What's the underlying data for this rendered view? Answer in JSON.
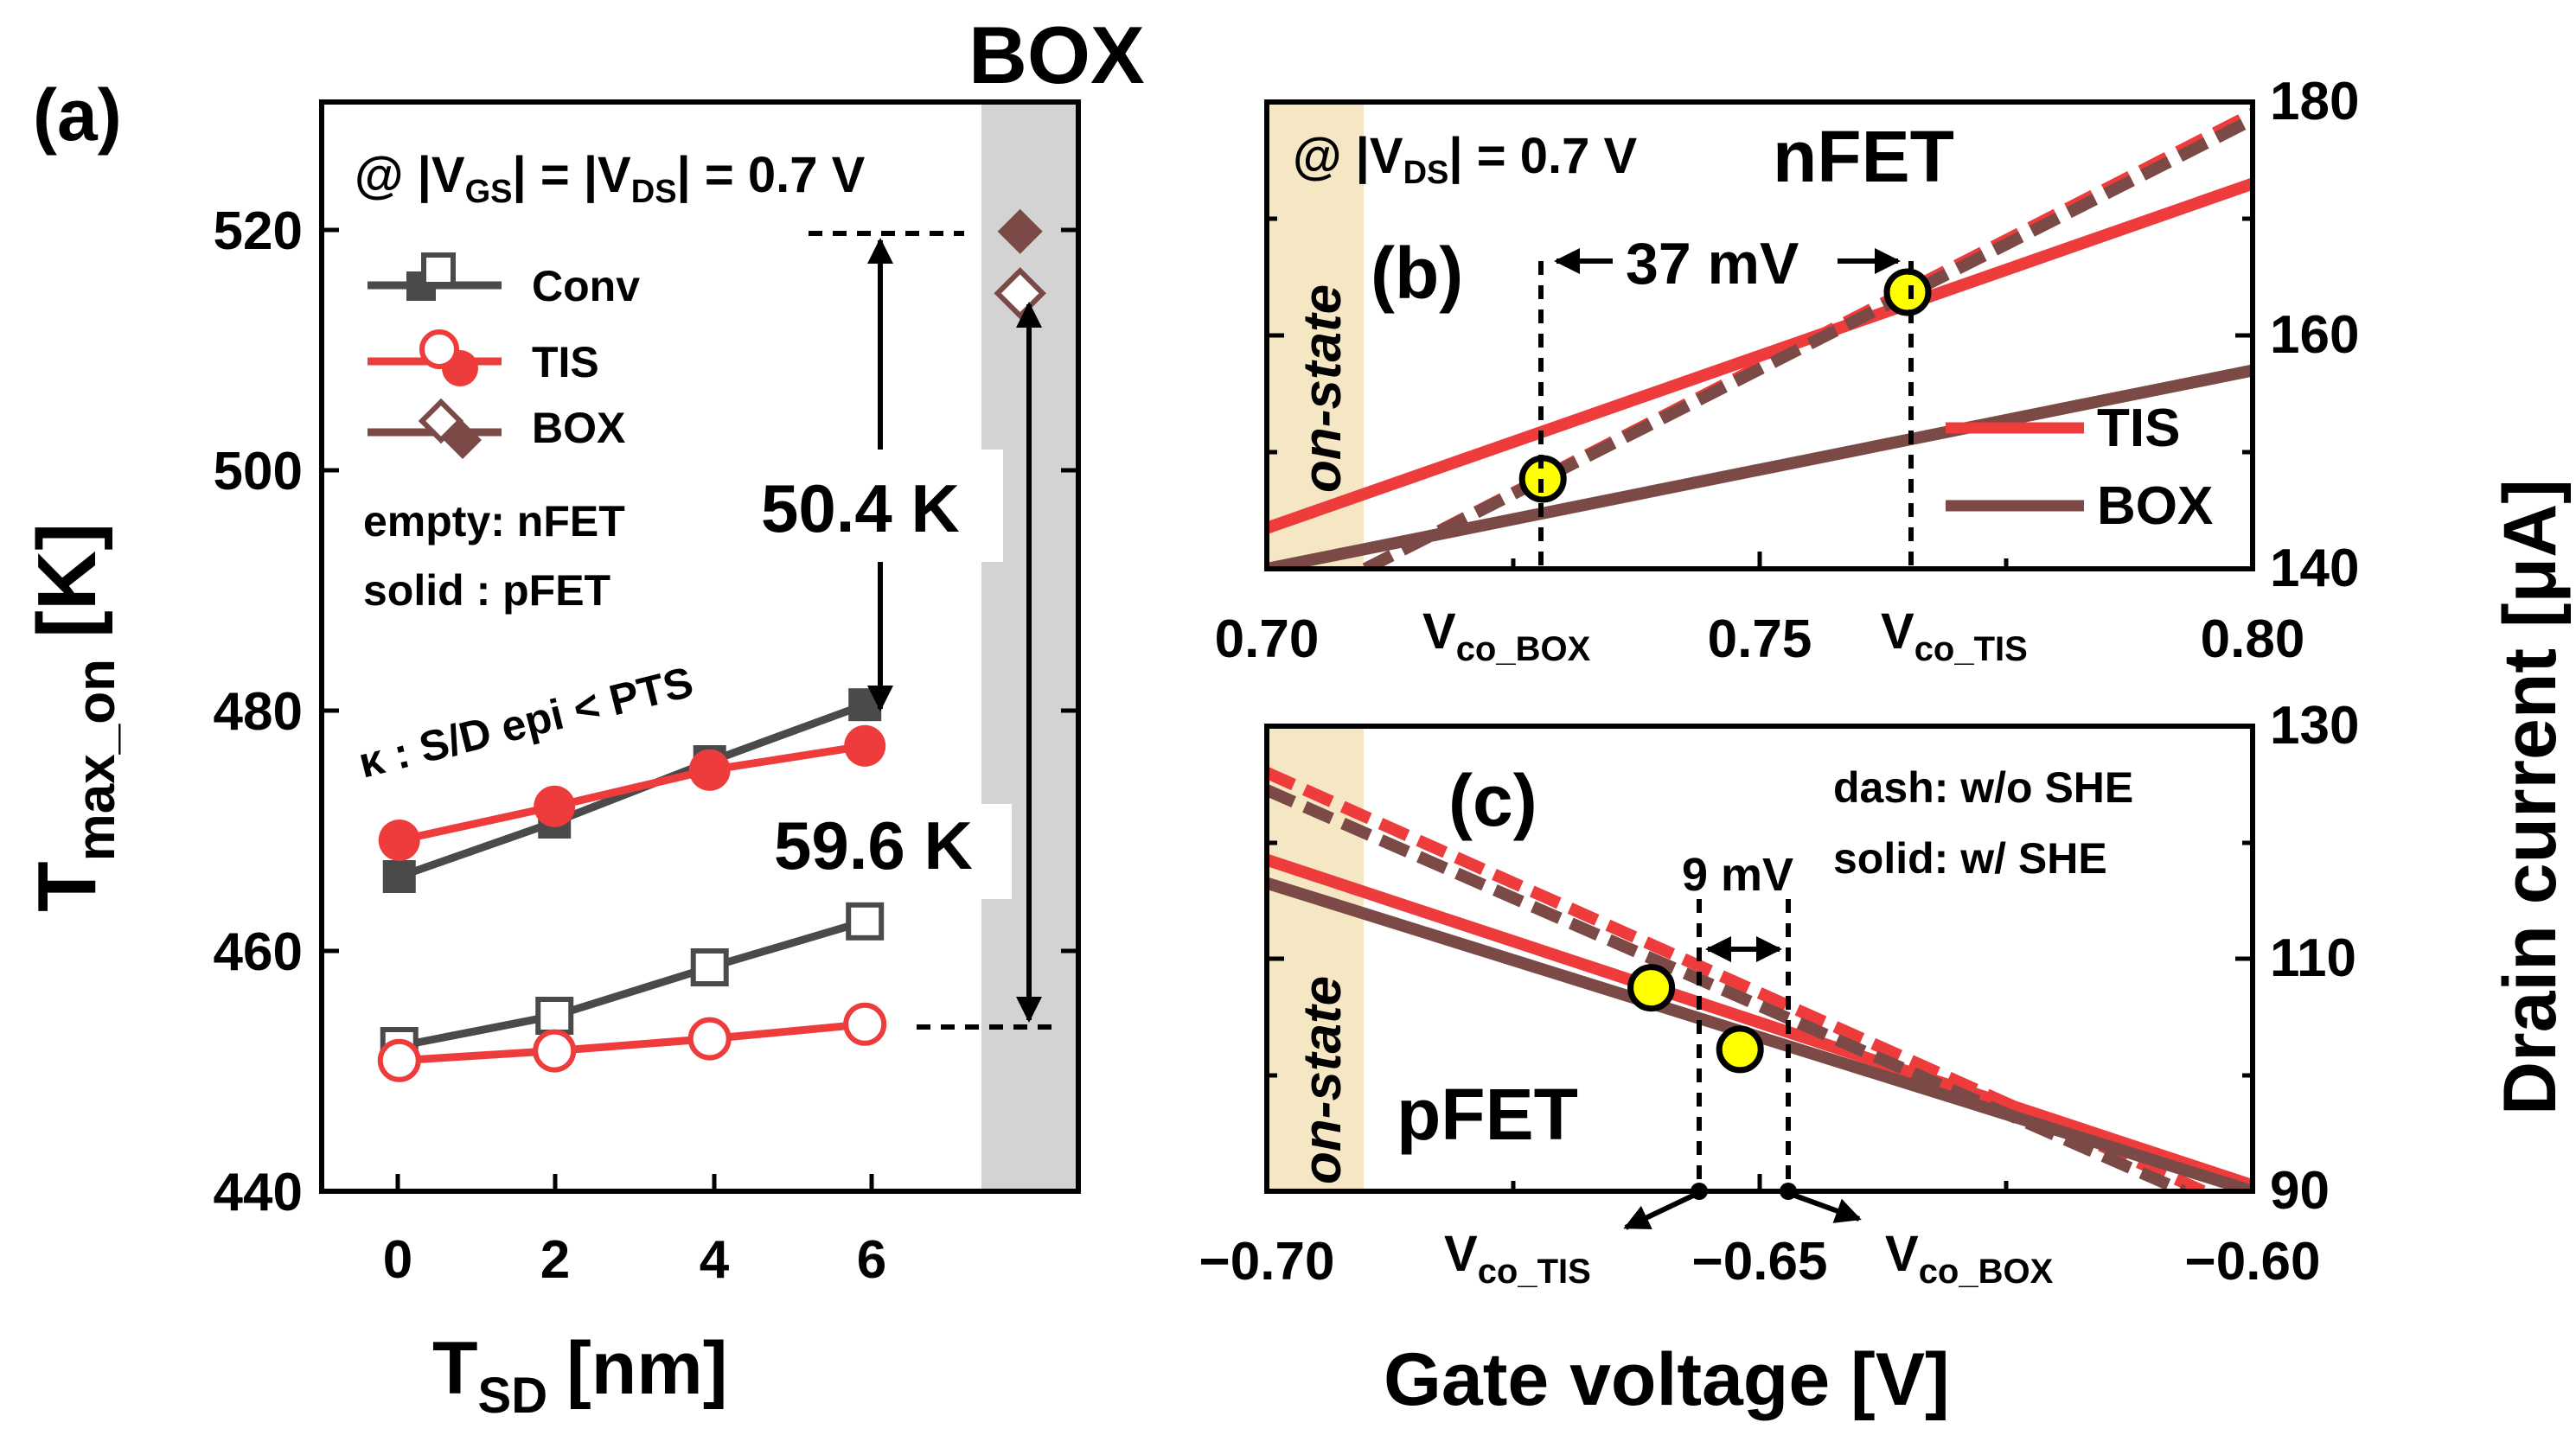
{
  "colors": {
    "conv": "#4a4a4a",
    "tis": "#ee3b3b",
    "box": "#7b4a46",
    "box_label": "#7a1010",
    "shade": "#d3d3d3",
    "onstate_shade": "#f6e7c4",
    "onstate_text": "#a7a7a7",
    "marker": "#ffff00"
  },
  "labels": {
    "box_title": "BOX",
    "onstate": "on-state",
    "drain_current_axis": "Drain current [μA]",
    "gate_voltage_axis": "Gate voltage [V]",
    "vco_prefix": "V",
    "vco_tis_sub": "co_TIS",
    "vco_box_sub": "co_BOX"
  },
  "chart_data": [
    {
      "panel": "(a)",
      "type": "line",
      "ylabel_main": "T",
      "ylabel_sub": "max_on",
      "ylabel_unit": "[K]",
      "xlabel_main": "T",
      "xlabel_sub": "SD",
      "xlabel_unit": "[nm]",
      "xlim": [
        -1,
        8.75
      ],
      "ylim": [
        440,
        530
      ],
      "xticks": [
        0,
        2,
        4,
        6
      ],
      "yticks": [
        440,
        460,
        480,
        500,
        520
      ],
      "condition_prefix": "@ |V",
      "condition_gs": "GS",
      "condition_mid": "| = |V",
      "condition_ds": "DS",
      "condition_suffix": "| = 0.7 V",
      "legend": [
        "Conv",
        "TIS",
        "BOX"
      ],
      "legend_note_1": "empty: nFET",
      "legend_note_2": "solid  : pFET",
      "kappa_note": "κ : S/D epi < PTS",
      "series": [
        {
          "name": "Conv pFET",
          "fill": "solid",
          "marker": "square",
          "x": [
            0,
            2,
            4,
            6
          ],
          "y": [
            466,
            470.5,
            475.5,
            480.2
          ]
        },
        {
          "name": "TIS pFET",
          "fill": "solid",
          "marker": "circle",
          "x": [
            0,
            2,
            4,
            6
          ],
          "y": [
            469,
            471.8,
            474.8,
            476.8
          ]
        },
        {
          "name": "Conv nFET",
          "fill": "empty",
          "marker": "square",
          "x": [
            0,
            2,
            4,
            6
          ],
          "y": [
            452,
            454.5,
            458.5,
            462.3
          ]
        },
        {
          "name": "TIS nFET",
          "fill": "empty",
          "marker": "circle",
          "x": [
            0,
            2,
            4,
            6
          ],
          "y": [
            450.8,
            451.6,
            452.6,
            453.8
          ]
        },
        {
          "name": "BOX pFET",
          "fill": "solid",
          "marker": "diamond",
          "x": [
            8
          ],
          "y": [
            519.3
          ]
        },
        {
          "name": "BOX nFET",
          "fill": "empty",
          "marker": "diamond",
          "x": [
            8
          ],
          "y": [
            514.2
          ]
        }
      ],
      "annotations": [
        "50.4 K",
        "59.6 K"
      ]
    },
    {
      "panel": "(b)",
      "type": "line",
      "device": "nFET",
      "condition_prefix": "@ |V",
      "condition_ds": "DS",
      "condition_suffix": "| = 0.7 V",
      "xlim": [
        0.7,
        0.8
      ],
      "ylim": [
        140,
        180
      ],
      "xticks": [
        "0.70",
        "0.75",
        "0.80"
      ],
      "yticks": [
        140,
        160,
        180
      ],
      "legend": [
        "TIS",
        "BOX"
      ],
      "series": [
        {
          "name": "TIS w/ SHE",
          "style": "solid",
          "x": [
            0.7,
            0.8
          ],
          "y": [
            143.5,
            173
          ]
        },
        {
          "name": "TIS w/o SHE",
          "style": "dash",
          "x": [
            0.71,
            0.8
          ],
          "y": [
            140,
            179
          ]
        },
        {
          "name": "BOX w/ SHE",
          "style": "solid",
          "x": [
            0.7,
            0.8
          ],
          "y": [
            140,
            157
          ]
        },
        {
          "name": "BOX w/o SHE",
          "style": "dash",
          "x": [
            0.71,
            0.8
          ],
          "y": [
            140,
            178.5
          ]
        }
      ],
      "crossovers": [
        {
          "label": "Vco_BOX",
          "x": 0.728,
          "y": 147.7
        },
        {
          "label": "Vco_TIS",
          "x": 0.765,
          "y": 163.7
        }
      ],
      "delta": "37 mV"
    },
    {
      "panel": "(c)",
      "type": "line",
      "device": "pFET",
      "xlim": [
        -0.7,
        -0.6
      ],
      "ylim": [
        90,
        130
      ],
      "xticks": [
        "−0.70",
        "−0.65",
        "−0.60"
      ],
      "yticks": [
        90,
        110,
        130
      ],
      "notes": [
        "dash: w/o SHE",
        "solid: w/ SHE"
      ],
      "series": [
        {
          "name": "TIS w/ SHE",
          "style": "solid",
          "x": [
            -0.7,
            -0.6
          ],
          "y": [
            118.5,
            90.5
          ]
        },
        {
          "name": "TIS w/o SHE",
          "style": "dash",
          "x": [
            -0.7,
            -0.605
          ],
          "y": [
            126,
            90
          ]
        },
        {
          "name": "BOX w/ SHE",
          "style": "solid",
          "x": [
            -0.7,
            -0.6
          ],
          "y": [
            116.5,
            90
          ]
        },
        {
          "name": "BOX w/o SHE",
          "style": "dash",
          "x": [
            -0.7,
            -0.607
          ],
          "y": [
            124.5,
            90
          ]
        }
      ],
      "crossovers": [
        {
          "label": "Vco_TIS",
          "x": -0.661,
          "y": 107.5
        },
        {
          "label": "Vco_BOX",
          "x": -0.652,
          "y": 102.2
        }
      ],
      "delta": "9 mV"
    }
  ]
}
